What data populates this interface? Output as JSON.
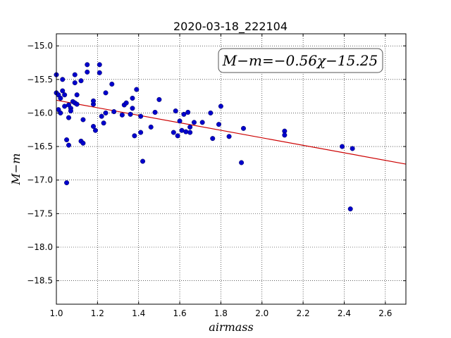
{
  "chart_data": {
    "type": "scatter",
    "title": "2020-03-18_222104",
    "xlabel": "airmass",
    "ylabel": "M−m",
    "xlim": [
      1.0,
      2.7
    ],
    "ylim": [
      -18.85,
      -14.82
    ],
    "y_inverted": true,
    "grid": true,
    "grid_style": "dotted",
    "x_ticks": [
      1.0,
      1.2,
      1.4,
      1.6,
      1.8,
      2.0,
      2.2,
      2.4,
      2.6
    ],
    "x_tick_labels": [
      "1.0",
      "1.2",
      "1.4",
      "1.6",
      "1.8",
      "2.0",
      "2.2",
      "2.4",
      "2.6"
    ],
    "y_ticks": [
      -15.0,
      -15.5,
      -16.0,
      -16.5,
      -17.0,
      -17.5,
      -18.0,
      -18.5
    ],
    "y_tick_labels": [
      "−15.0",
      "−15.5",
      "−16.0",
      "−16.5",
      "−17.0",
      "−17.5",
      "−18.0",
      "−18.5"
    ],
    "annotation": "M−m=−0.56χ−15.25",
    "fit": {
      "slope": -0.56,
      "intercept": -15.25,
      "color": "#cc0000"
    },
    "points_color": "#0000cc",
    "points": [
      [
        1.0,
        -15.43
      ],
      [
        1.0,
        -15.7
      ],
      [
        1.01,
        -15.95
      ],
      [
        1.01,
        -15.73
      ],
      [
        1.02,
        -16.0
      ],
      [
        1.02,
        -15.78
      ],
      [
        1.03,
        -15.67
      ],
      [
        1.03,
        -15.5
      ],
      [
        1.04,
        -15.73
      ],
      [
        1.04,
        -15.9
      ],
      [
        1.05,
        -16.4
      ],
      [
        1.05,
        -17.04
      ],
      [
        1.06,
        -16.07
      ],
      [
        1.06,
        -15.88
      ],
      [
        1.06,
        -16.48
      ],
      [
        1.07,
        -15.93
      ],
      [
        1.07,
        -15.97
      ],
      [
        1.08,
        -15.83
      ],
      [
        1.09,
        -15.85
      ],
      [
        1.09,
        -15.43
      ],
      [
        1.09,
        -15.55
      ],
      [
        1.1,
        -15.87
      ],
      [
        1.1,
        -15.73
      ],
      [
        1.12,
        -15.52
      ],
      [
        1.12,
        -16.42
      ],
      [
        1.13,
        -16.45
      ],
      [
        1.13,
        -16.1
      ],
      [
        1.15,
        -15.39
      ],
      [
        1.15,
        -15.28
      ],
      [
        1.18,
        -16.2
      ],
      [
        1.18,
        -15.87
      ],
      [
        1.19,
        -16.26
      ],
      [
        1.18,
        -15.82
      ],
      [
        1.21,
        -15.28
      ],
      [
        1.21,
        -15.4
      ],
      [
        1.22,
        -16.05
      ],
      [
        1.23,
        -16.15
      ],
      [
        1.24,
        -16.0
      ],
      [
        1.24,
        -15.7
      ],
      [
        1.27,
        -15.57
      ],
      [
        1.28,
        -15.98
      ],
      [
        1.32,
        -16.03
      ],
      [
        1.33,
        -15.88
      ],
      [
        1.34,
        -15.85
      ],
      [
        1.36,
        -16.02
      ],
      [
        1.37,
        -15.78
      ],
      [
        1.37,
        -15.93
      ],
      [
        1.38,
        -16.34
      ],
      [
        1.39,
        -15.65
      ],
      [
        1.41,
        -16.05
      ],
      [
        1.41,
        -16.29
      ],
      [
        1.42,
        -16.72
      ],
      [
        1.46,
        -16.21
      ],
      [
        1.48,
        -15.99
      ],
      [
        1.5,
        -15.8
      ],
      [
        1.57,
        -16.29
      ],
      [
        1.58,
        -15.97
      ],
      [
        1.59,
        -16.34
      ],
      [
        1.6,
        -16.12
      ],
      [
        1.61,
        -16.26
      ],
      [
        1.62,
        -16.02
      ],
      [
        1.63,
        -16.28
      ],
      [
        1.64,
        -15.99
      ],
      [
        1.65,
        -16.21
      ],
      [
        1.65,
        -16.29
      ],
      [
        1.67,
        -16.14
      ],
      [
        1.71,
        -16.14
      ],
      [
        1.75,
        -16.0
      ],
      [
        1.76,
        -16.38
      ],
      [
        1.79,
        -16.17
      ],
      [
        1.8,
        -15.9
      ],
      [
        1.84,
        -16.35
      ],
      [
        1.9,
        -16.74
      ],
      [
        1.91,
        -16.23
      ],
      [
        2.11,
        -16.27
      ],
      [
        2.11,
        -16.33
      ],
      [
        2.39,
        -16.5
      ],
      [
        2.43,
        -17.43
      ],
      [
        2.44,
        -16.53
      ]
    ]
  }
}
